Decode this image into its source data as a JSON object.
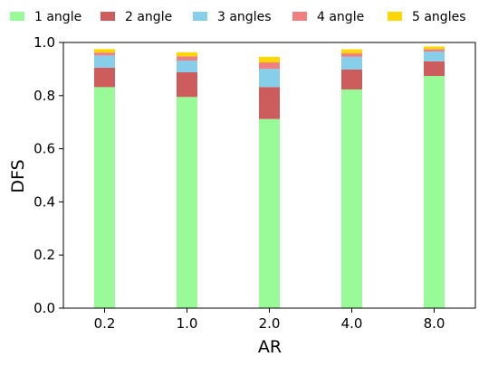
{
  "chart_data": {
    "type": "bar",
    "stacked": true,
    "title": "",
    "xlabel": "AR",
    "ylabel": "DFS",
    "ylim": [
      0,
      1.0
    ],
    "yticks": [
      "0.0",
      "0.2",
      "0.4",
      "0.6",
      "0.8",
      "1.0"
    ],
    "categories": [
      "0.2",
      "1.0",
      "2.0",
      "4.0",
      "8.0"
    ],
    "legend_position": "top",
    "grid": false,
    "series": [
      {
        "name": "1 angle",
        "color": "#98fb98",
        "values": [
          0.832,
          0.795,
          0.712,
          0.823,
          0.874
        ]
      },
      {
        "name": "2 angle",
        "color": "#cd5c5c",
        "values": [
          0.073,
          0.093,
          0.12,
          0.075,
          0.055
        ]
      },
      {
        "name": "3 angles",
        "color": "#87ceeb",
        "values": [
          0.046,
          0.044,
          0.069,
          0.048,
          0.037
        ]
      },
      {
        "name": "4 angle",
        "color": "#f08080",
        "values": [
          0.011,
          0.016,
          0.024,
          0.013,
          0.009
        ]
      },
      {
        "name": "5 angles",
        "color": "#ffd700",
        "values": [
          0.013,
          0.015,
          0.021,
          0.015,
          0.01
        ]
      }
    ]
  }
}
